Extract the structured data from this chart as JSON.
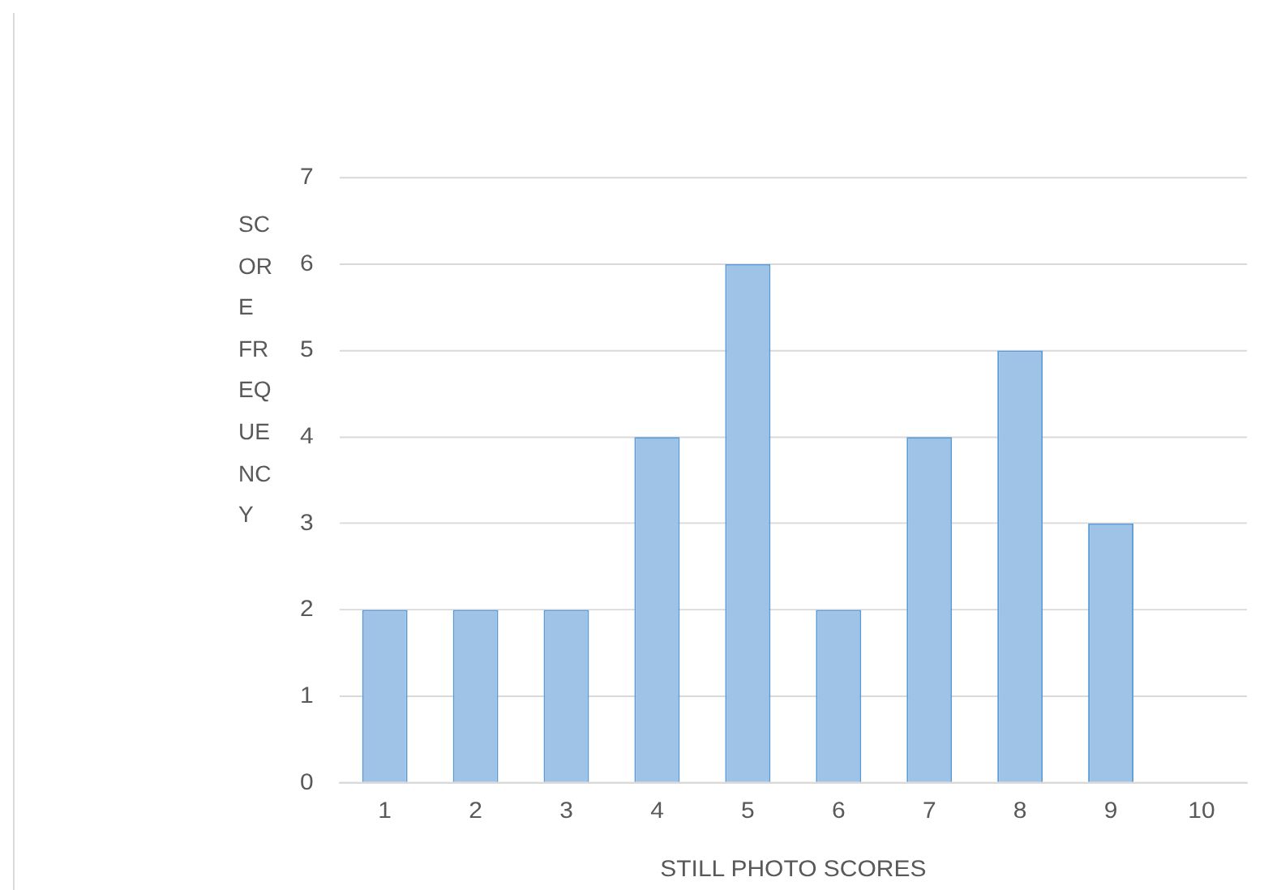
{
  "chart_data": {
    "type": "bar",
    "xlabel": "STILL PHOTO SCORES",
    "ylabel": "SCORE FREQUENCY",
    "categories": [
      "1",
      "2",
      "3",
      "4",
      "5",
      "6",
      "7",
      "8",
      "9",
      "10"
    ],
    "values": [
      2,
      2,
      2,
      4,
      6,
      2,
      4,
      5,
      3,
      0
    ],
    "color": "#9fc2e7",
    "ylim": [
      0,
      7
    ],
    "yticks": [
      0,
      1,
      2,
      3,
      4,
      5,
      6,
      7
    ],
    "grid": "y",
    "legend": false
  }
}
